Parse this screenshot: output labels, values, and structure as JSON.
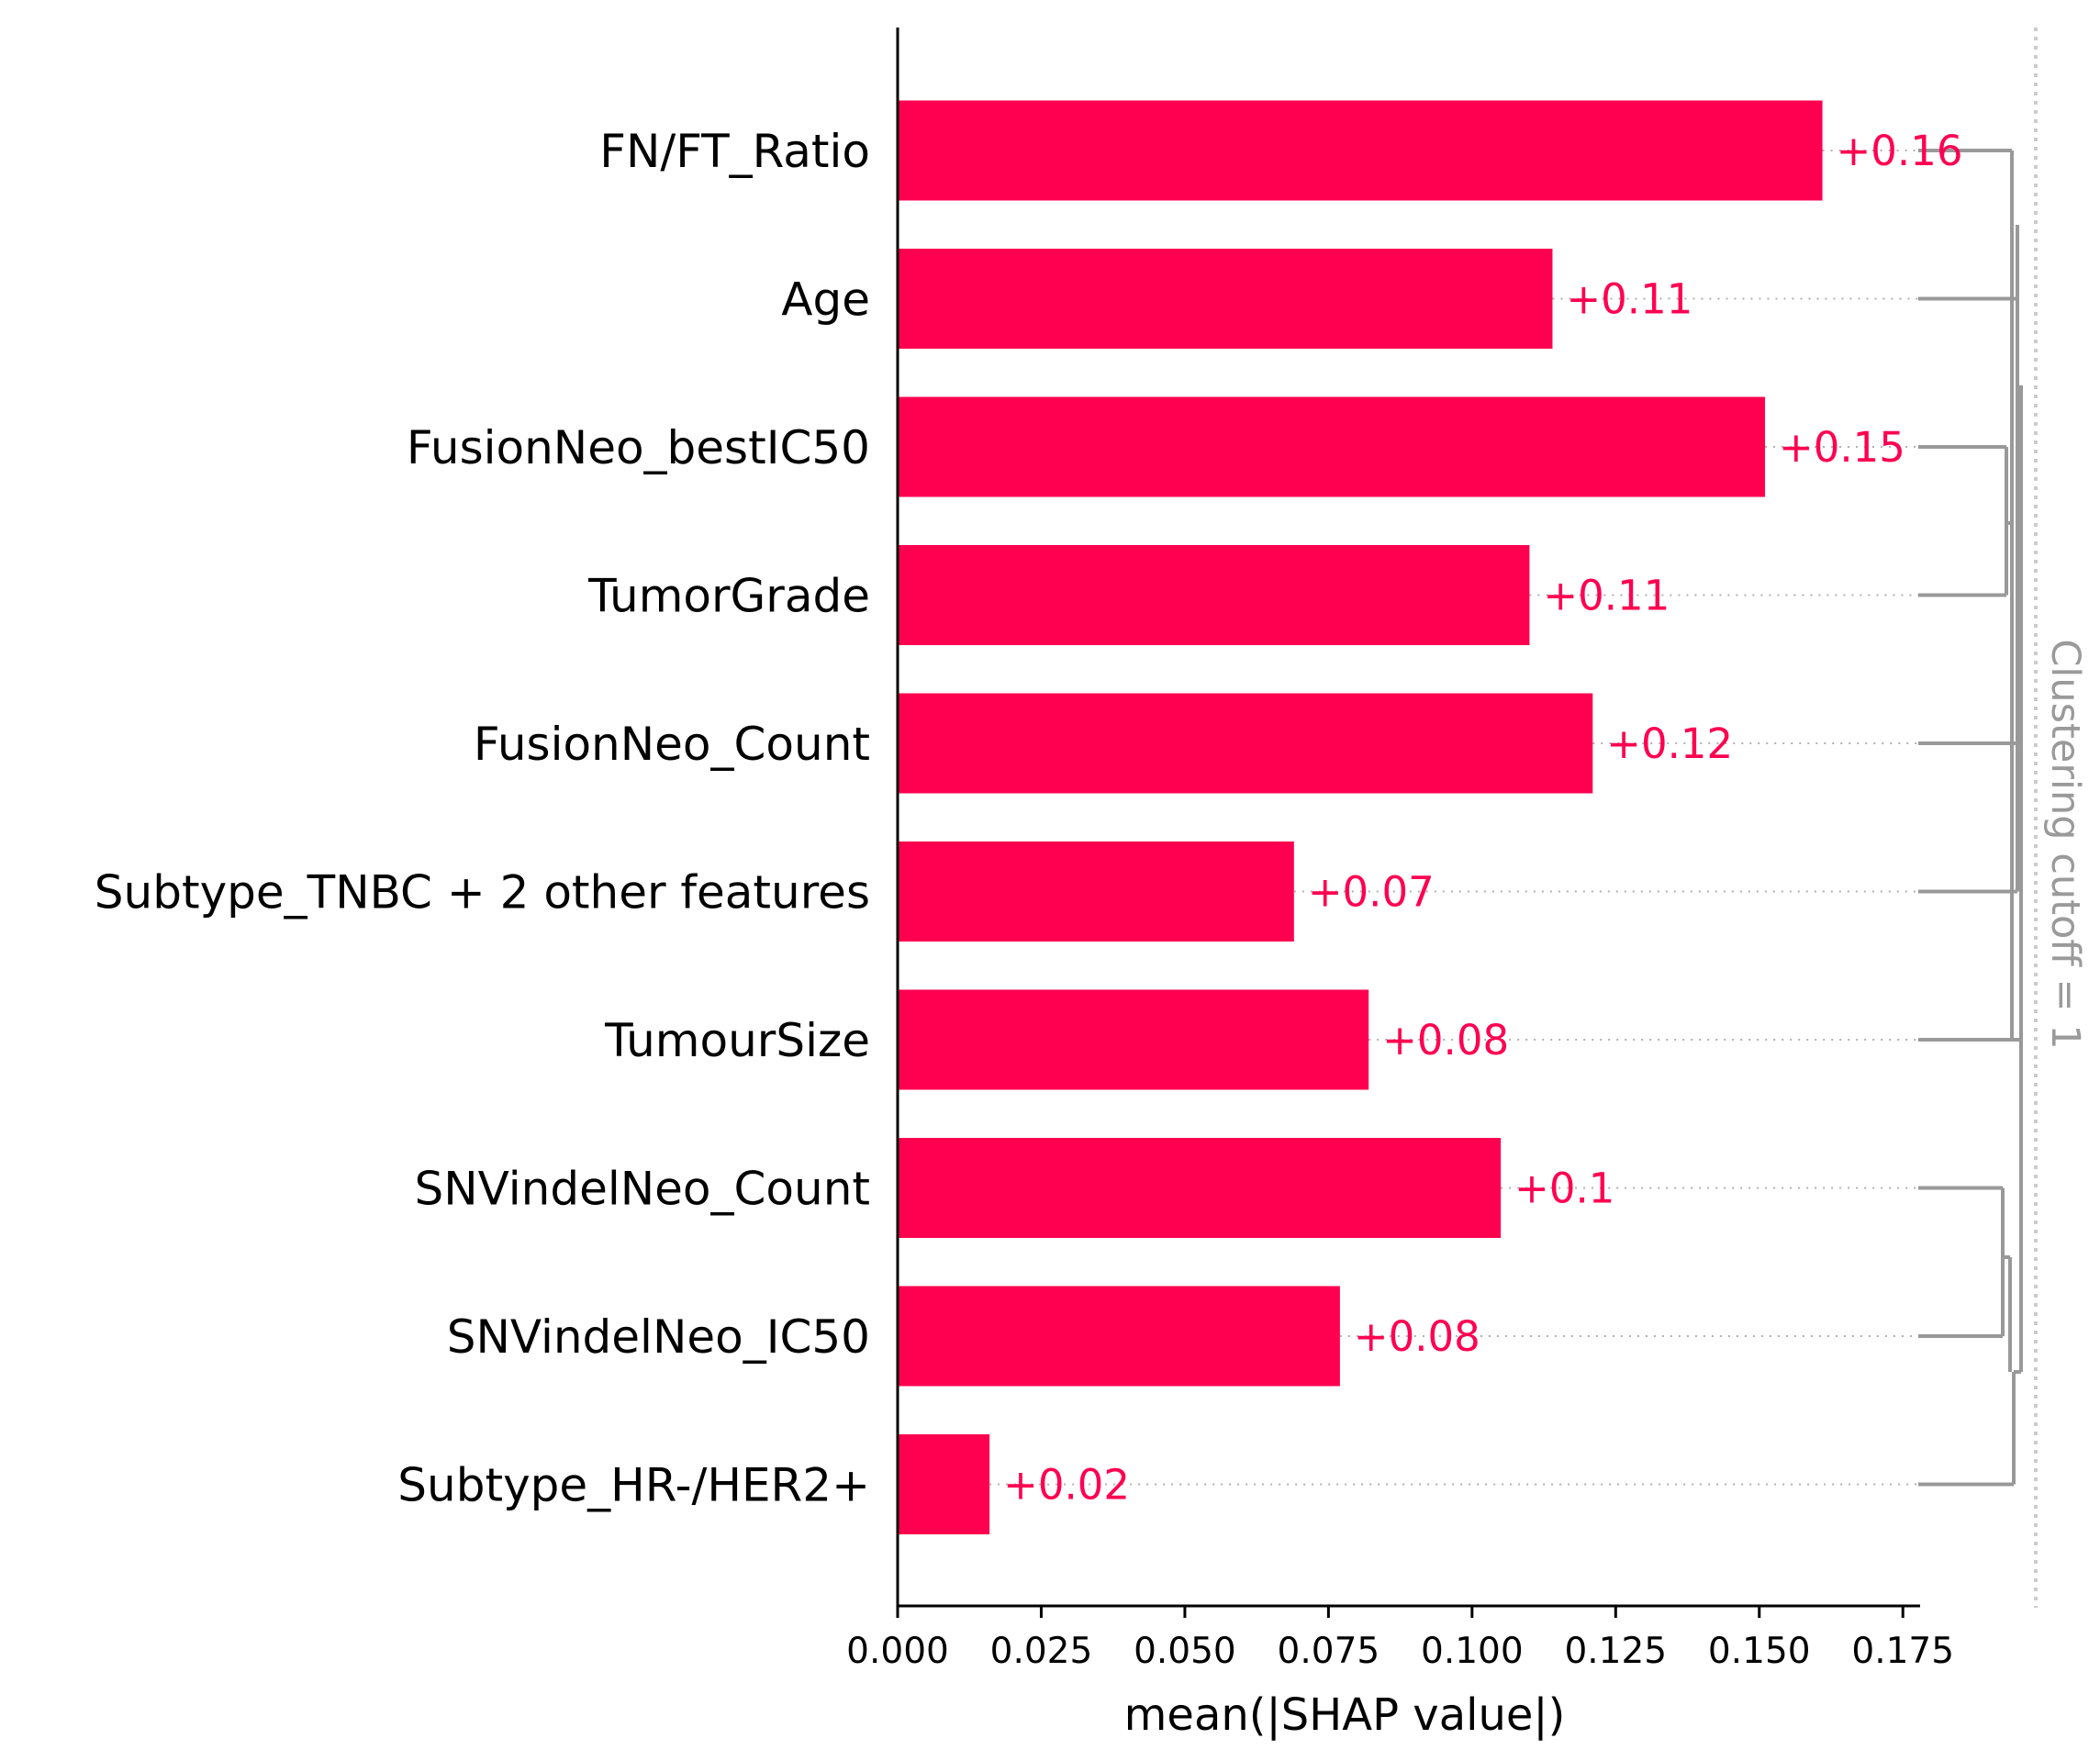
{
  "chart_data": {
    "type": "bar",
    "orientation": "horizontal",
    "categories": [
      "FN/FT_Ratio",
      "Age",
      "FusionNeo_bestIC50",
      "TumorGrade",
      "FusionNeo_Count",
      "Subtype_TNBC + 2 other features",
      "TumourSize",
      "SNVindelNeo_Count",
      "SNVindelNeo_IC50",
      "Subtype_HR-/HER2+"
    ],
    "values": [
      0.161,
      0.114,
      0.151,
      0.11,
      0.121,
      0.069,
      0.082,
      0.105,
      0.077,
      0.016
    ],
    "value_labels": [
      "+0.16",
      "+0.11",
      "+0.15",
      "+0.11",
      "+0.12",
      "+0.07",
      "+0.08",
      "+0.1",
      "+0.08",
      "+0.02"
    ],
    "xlabel": "mean(|SHAP value|)",
    "xlim": [
      0,
      0.178
    ],
    "xticks": [
      0.0,
      0.025,
      0.05,
      0.075,
      0.1,
      0.125,
      0.15,
      0.175
    ],
    "xtick_labels": [
      "0.000",
      "0.025",
      "0.050",
      "0.075",
      "0.100",
      "0.125",
      "0.150",
      "0.175"
    ],
    "cutoff_label": "Clustering cutoff = 1",
    "grid": false,
    "colors": {
      "bar": "#ff0051",
      "value_text": "#ff0051",
      "dendrogram": "#999999",
      "cutoff_line": "#cccccc",
      "axis": "#000000"
    }
  }
}
